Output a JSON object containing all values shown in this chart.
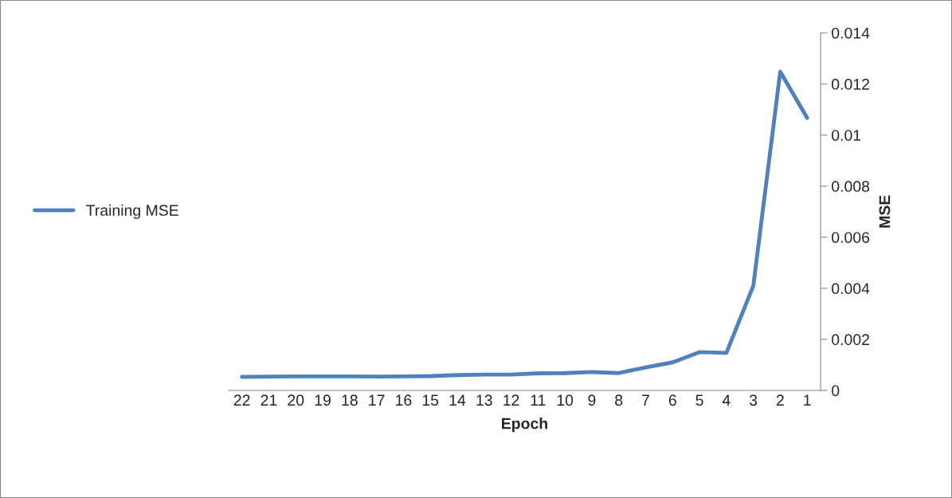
{
  "chart_data": {
    "type": "line",
    "xlabel": "Epoch",
    "ylabel": "MSE",
    "categories": [
      "22",
      "21",
      "20",
      "19",
      "18",
      "17",
      "16",
      "15",
      "14",
      "13",
      "12",
      "11",
      "10",
      "9",
      "8",
      "7",
      "6",
      "5",
      "4",
      "3",
      "2",
      "1"
    ],
    "series": [
      {
        "name": "Training MSE",
        "color": "#4f81bd",
        "values": [
          0.00053,
          0.00054,
          0.00055,
          0.00055,
          0.00055,
          0.00054,
          0.00055,
          0.00056,
          0.0006,
          0.00062,
          0.00062,
          0.00067,
          0.00068,
          0.00072,
          0.00068,
          0.0009,
          0.0011,
          0.0015,
          0.00147,
          0.0041,
          0.01248,
          0.01067
        ]
      }
    ],
    "ylim": [
      0,
      0.014
    ],
    "yticks": [
      0,
      0.002,
      0.004,
      0.006,
      0.008,
      0.01,
      0.012,
      0.014
    ],
    "legend": "left",
    "grid": false,
    "marker": "none",
    "line_style": "solid"
  }
}
